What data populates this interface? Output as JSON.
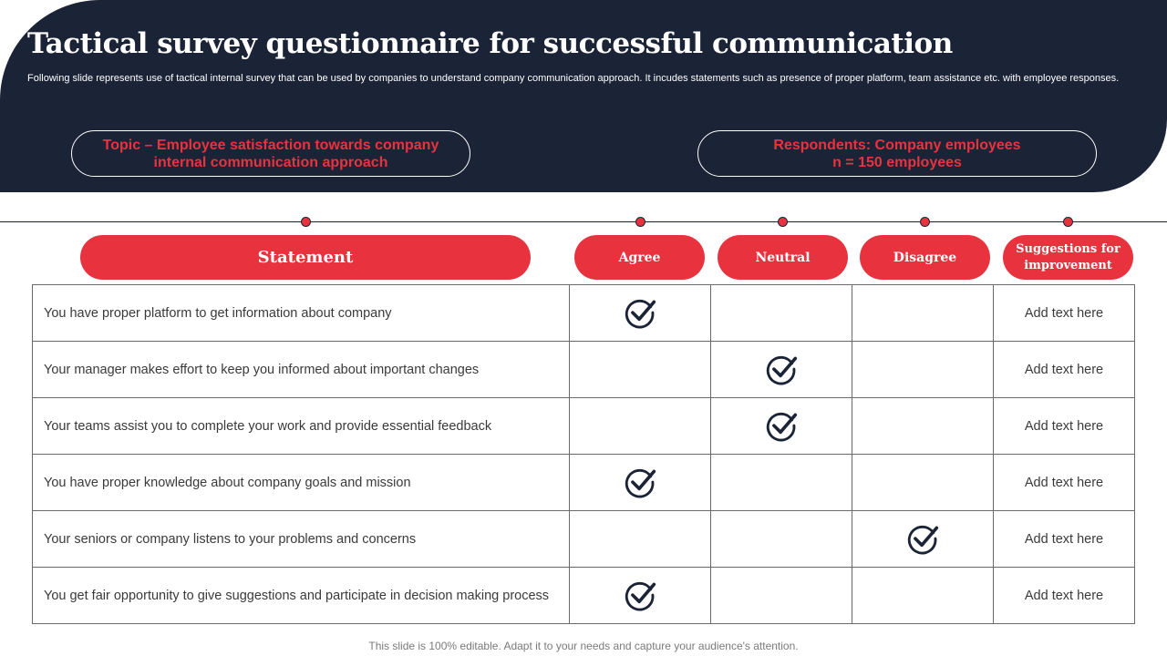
{
  "slide": {
    "title": "Tactical survey questionnaire for successful communication",
    "subtitle": "Following slide represents use of tactical internal survey that can be used by companies to understand company communication approach. It incudes statements such as presence of proper platform, team assistance etc. with employee responses.",
    "topic": {
      "line1": "Topic – Employee satisfaction towards company",
      "line2": "internal communication approach"
    },
    "respondents": {
      "line1": "Respondents: Company employees",
      "line2": "n = 150 employees"
    },
    "footer": "This slide is 100% editable. Adapt it to your needs and capture your audience's attention."
  },
  "table": {
    "headers": {
      "statement": "Statement",
      "agree": "Agree",
      "neutral": "Neutral",
      "disagree": "Disagree",
      "suggestions": "Suggestions for improvement"
    },
    "check_icon": "check-circle-icon",
    "rows": [
      {
        "statement": "You have proper platform to get information about company",
        "response": "agree",
        "suggestion": "Add text here"
      },
      {
        "statement": "Your manager makes effort to keep you informed about important changes",
        "response": "neutral",
        "suggestion": "Add text here"
      },
      {
        "statement": "Your teams assist you to complete your work and provide essential feedback",
        "response": "neutral",
        "suggestion": "Add text here"
      },
      {
        "statement": "You have proper knowledge about company goals and mission",
        "response": "agree",
        "suggestion": "Add text here"
      },
      {
        "statement": "Your seniors or company listens to your problems and concerns",
        "response": "disagree",
        "suggestion": "Add text here"
      },
      {
        "statement": "You get fair opportunity to give suggestions and participate in decision making process",
        "response": "agree",
        "suggestion": "Add text here"
      }
    ]
  },
  "colors": {
    "navy": "#1b2336",
    "accent_red": "#e8333f"
  }
}
